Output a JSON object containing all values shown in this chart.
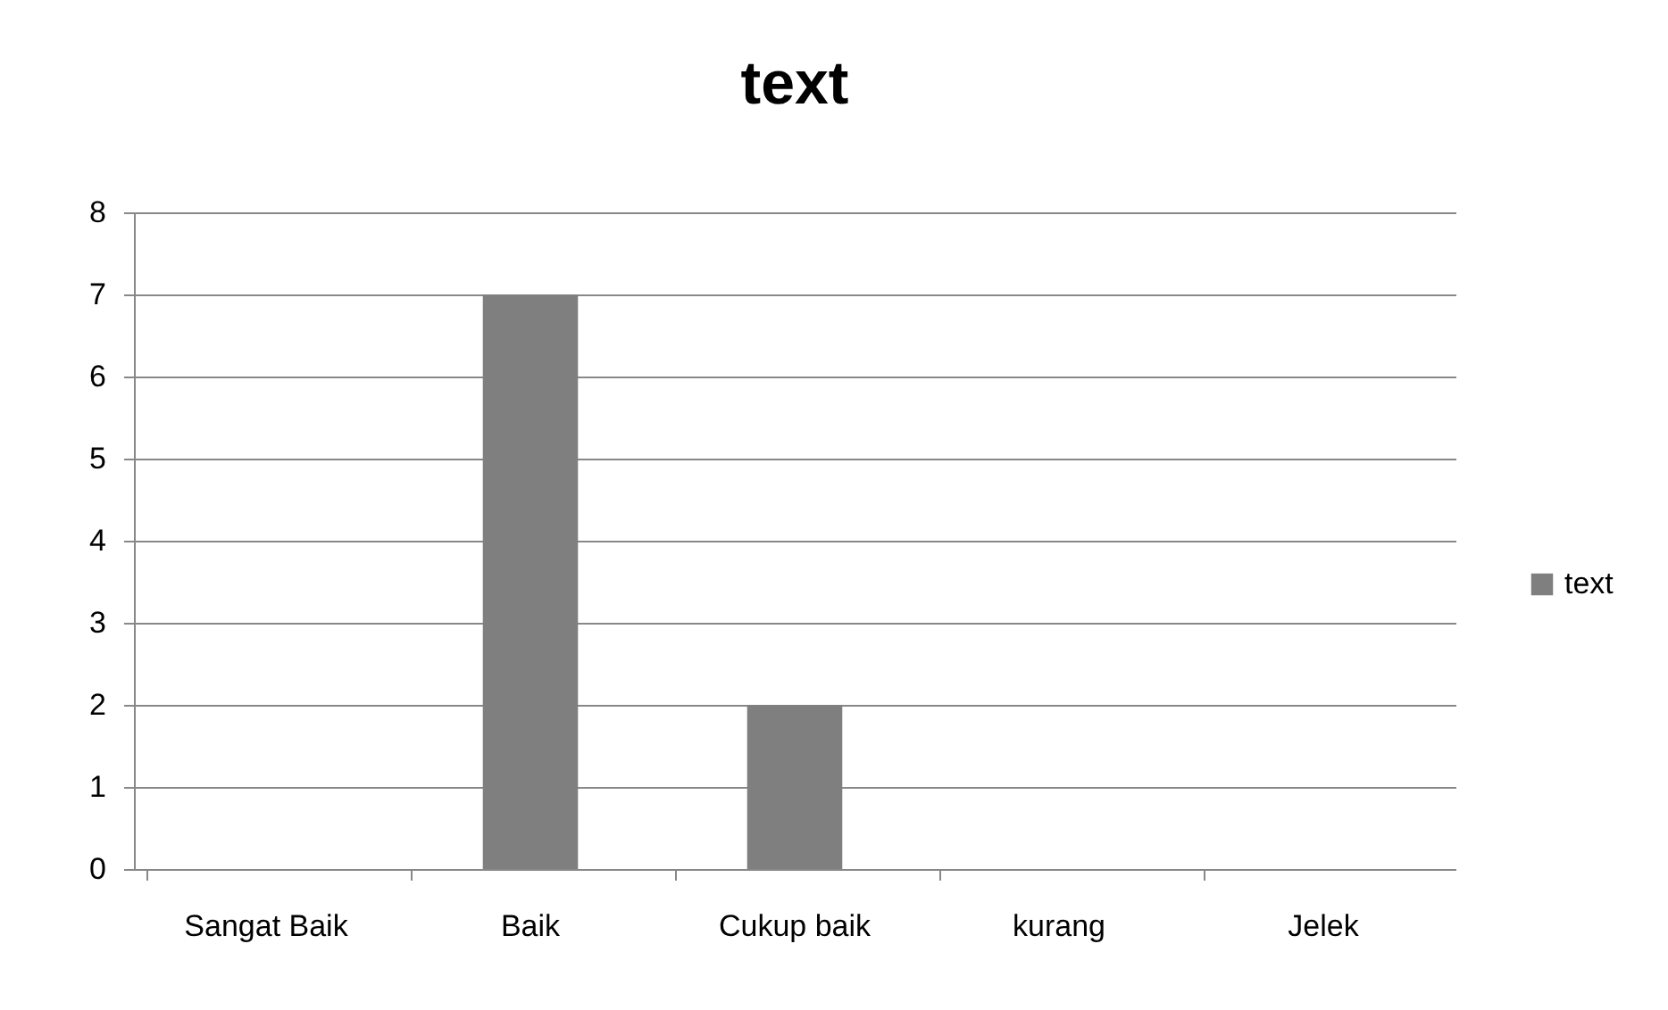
{
  "chart_data": {
    "type": "bar",
    "title": "text",
    "categories": [
      "Sangat Baik",
      "Baik",
      "Cukup baik",
      "kurang",
      "Jelek"
    ],
    "series": [
      {
        "name": "text",
        "color": "#7f7f7f",
        "values": [
          0,
          7,
          2,
          0,
          0
        ]
      }
    ],
    "ylim": [
      0,
      8
    ],
    "yticks": [
      0,
      1,
      2,
      3,
      4,
      5,
      6,
      7,
      8
    ],
    "grid": "y",
    "legend": "right"
  }
}
